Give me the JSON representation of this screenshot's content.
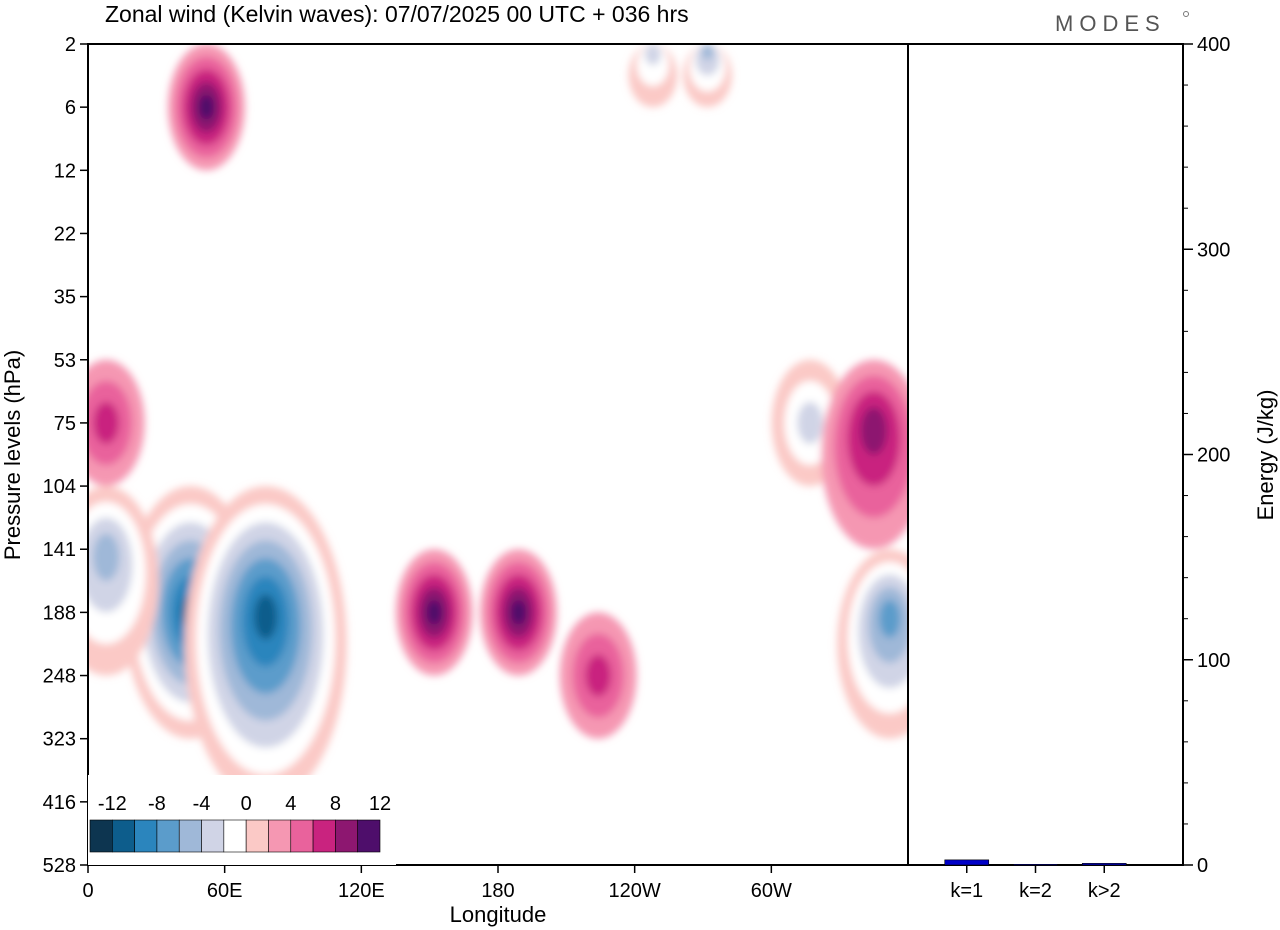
{
  "header": {
    "title": "Zonal wind (Kelvin waves):  07/07/2025  00 UTC  + 036 hrs",
    "logo": "MODES"
  },
  "chart_data": [
    {
      "type": "heatmap",
      "title": "Zonal wind (Kelvin waves):  07/07/2025  00 UTC  + 036 hrs",
      "xlabel": "Longitude",
      "ylabel": "Pressure levels (hPa)",
      "x_ticks": [
        "0",
        "60E",
        "120E",
        "180",
        "120W",
        "60W"
      ],
      "x_tick_degrees": [
        0,
        60,
        120,
        180,
        240,
        300
      ],
      "x_range": [
        0,
        360
      ],
      "y_ticks": [
        "2",
        "6",
        "12",
        "22",
        "35",
        "53",
        "75",
        "104",
        "141",
        "188",
        "248",
        "323",
        "416",
        "528"
      ],
      "y_scale": "model levels (pressure decreasing upward)",
      "colorbar": {
        "tick_labels": [
          "-12",
          "-8",
          "-4",
          "0",
          "4",
          "8",
          "12"
        ],
        "levels": [
          -14,
          -12,
          -10,
          -8,
          -6,
          -4,
          -2,
          2,
          4,
          6,
          8,
          10,
          12,
          14
        ],
        "colors": [
          "#0d3550",
          "#0d5d8c",
          "#2b85bd",
          "#5b9ccb",
          "#9fb8d8",
          "#d0d4e6",
          "#ffffff",
          "#fbc9c6",
          "#f597b2",
          "#e9629c",
          "#c9237f",
          "#8d1770",
          "#4e0e6b"
        ]
      },
      "features": [
        {
          "sign": "negative",
          "peak": -13,
          "lon_deg": 45,
          "level": "188",
          "extent_levels": [
            "104",
            "323"
          ]
        },
        {
          "sign": "negative",
          "peak": -13,
          "lon_deg": 78,
          "level": "188",
          "extent_levels": [
            "104",
            "416"
          ]
        },
        {
          "sign": "negative",
          "peak": -8,
          "lon_deg": 8,
          "level": "141",
          "extent_levels": [
            "104",
            "248"
          ]
        },
        {
          "sign": "negative",
          "peak": -9,
          "lon_deg": 352,
          "level": "188",
          "extent_levels": [
            "141",
            "323"
          ]
        },
        {
          "sign": "negative",
          "peak": -6,
          "lon_deg": 317,
          "level": "75",
          "extent_levels": [
            "53",
            "104"
          ]
        },
        {
          "sign": "negative",
          "peak": -8,
          "lon_deg": 272,
          "level": "2",
          "extent_levels": [
            "2",
            "6"
          ]
        },
        {
          "sign": "negative",
          "peak": -6,
          "lon_deg": 248,
          "level": "2",
          "extent_levels": [
            "2",
            "6"
          ]
        },
        {
          "sign": "positive",
          "peak": 10,
          "lon_deg": 152,
          "level": "188",
          "extent_levels": [
            "141",
            "248"
          ]
        },
        {
          "sign": "positive",
          "peak": 9,
          "lon_deg": 189,
          "level": "188",
          "extent_levels": [
            "141",
            "248"
          ]
        },
        {
          "sign": "positive",
          "peak": 6,
          "lon_deg": 224,
          "level": "248",
          "extent_levels": [
            "188",
            "323"
          ]
        },
        {
          "sign": "positive",
          "peak": 8,
          "lon_deg": 345,
          "level": "75",
          "extent_levels": [
            "53",
            "141"
          ]
        },
        {
          "sign": "positive",
          "peak": 10,
          "lon_deg": 52,
          "level": "6",
          "extent_levels": [
            "2",
            "12"
          ]
        },
        {
          "sign": "positive",
          "peak": 6,
          "lon_deg": 8,
          "level": "75",
          "extent_levels": [
            "53",
            "104"
          ]
        }
      ]
    },
    {
      "type": "bar",
      "ylabel": "Energy (J/kg)",
      "categories": [
        "k=1",
        "k=2",
        "k>2"
      ],
      "values": [
        2.5,
        0.3,
        0.8
      ],
      "ylim": [
        0,
        400
      ],
      "y_ticks": [
        0,
        100,
        200,
        300,
        400
      ],
      "color": "#0000c8"
    }
  ]
}
